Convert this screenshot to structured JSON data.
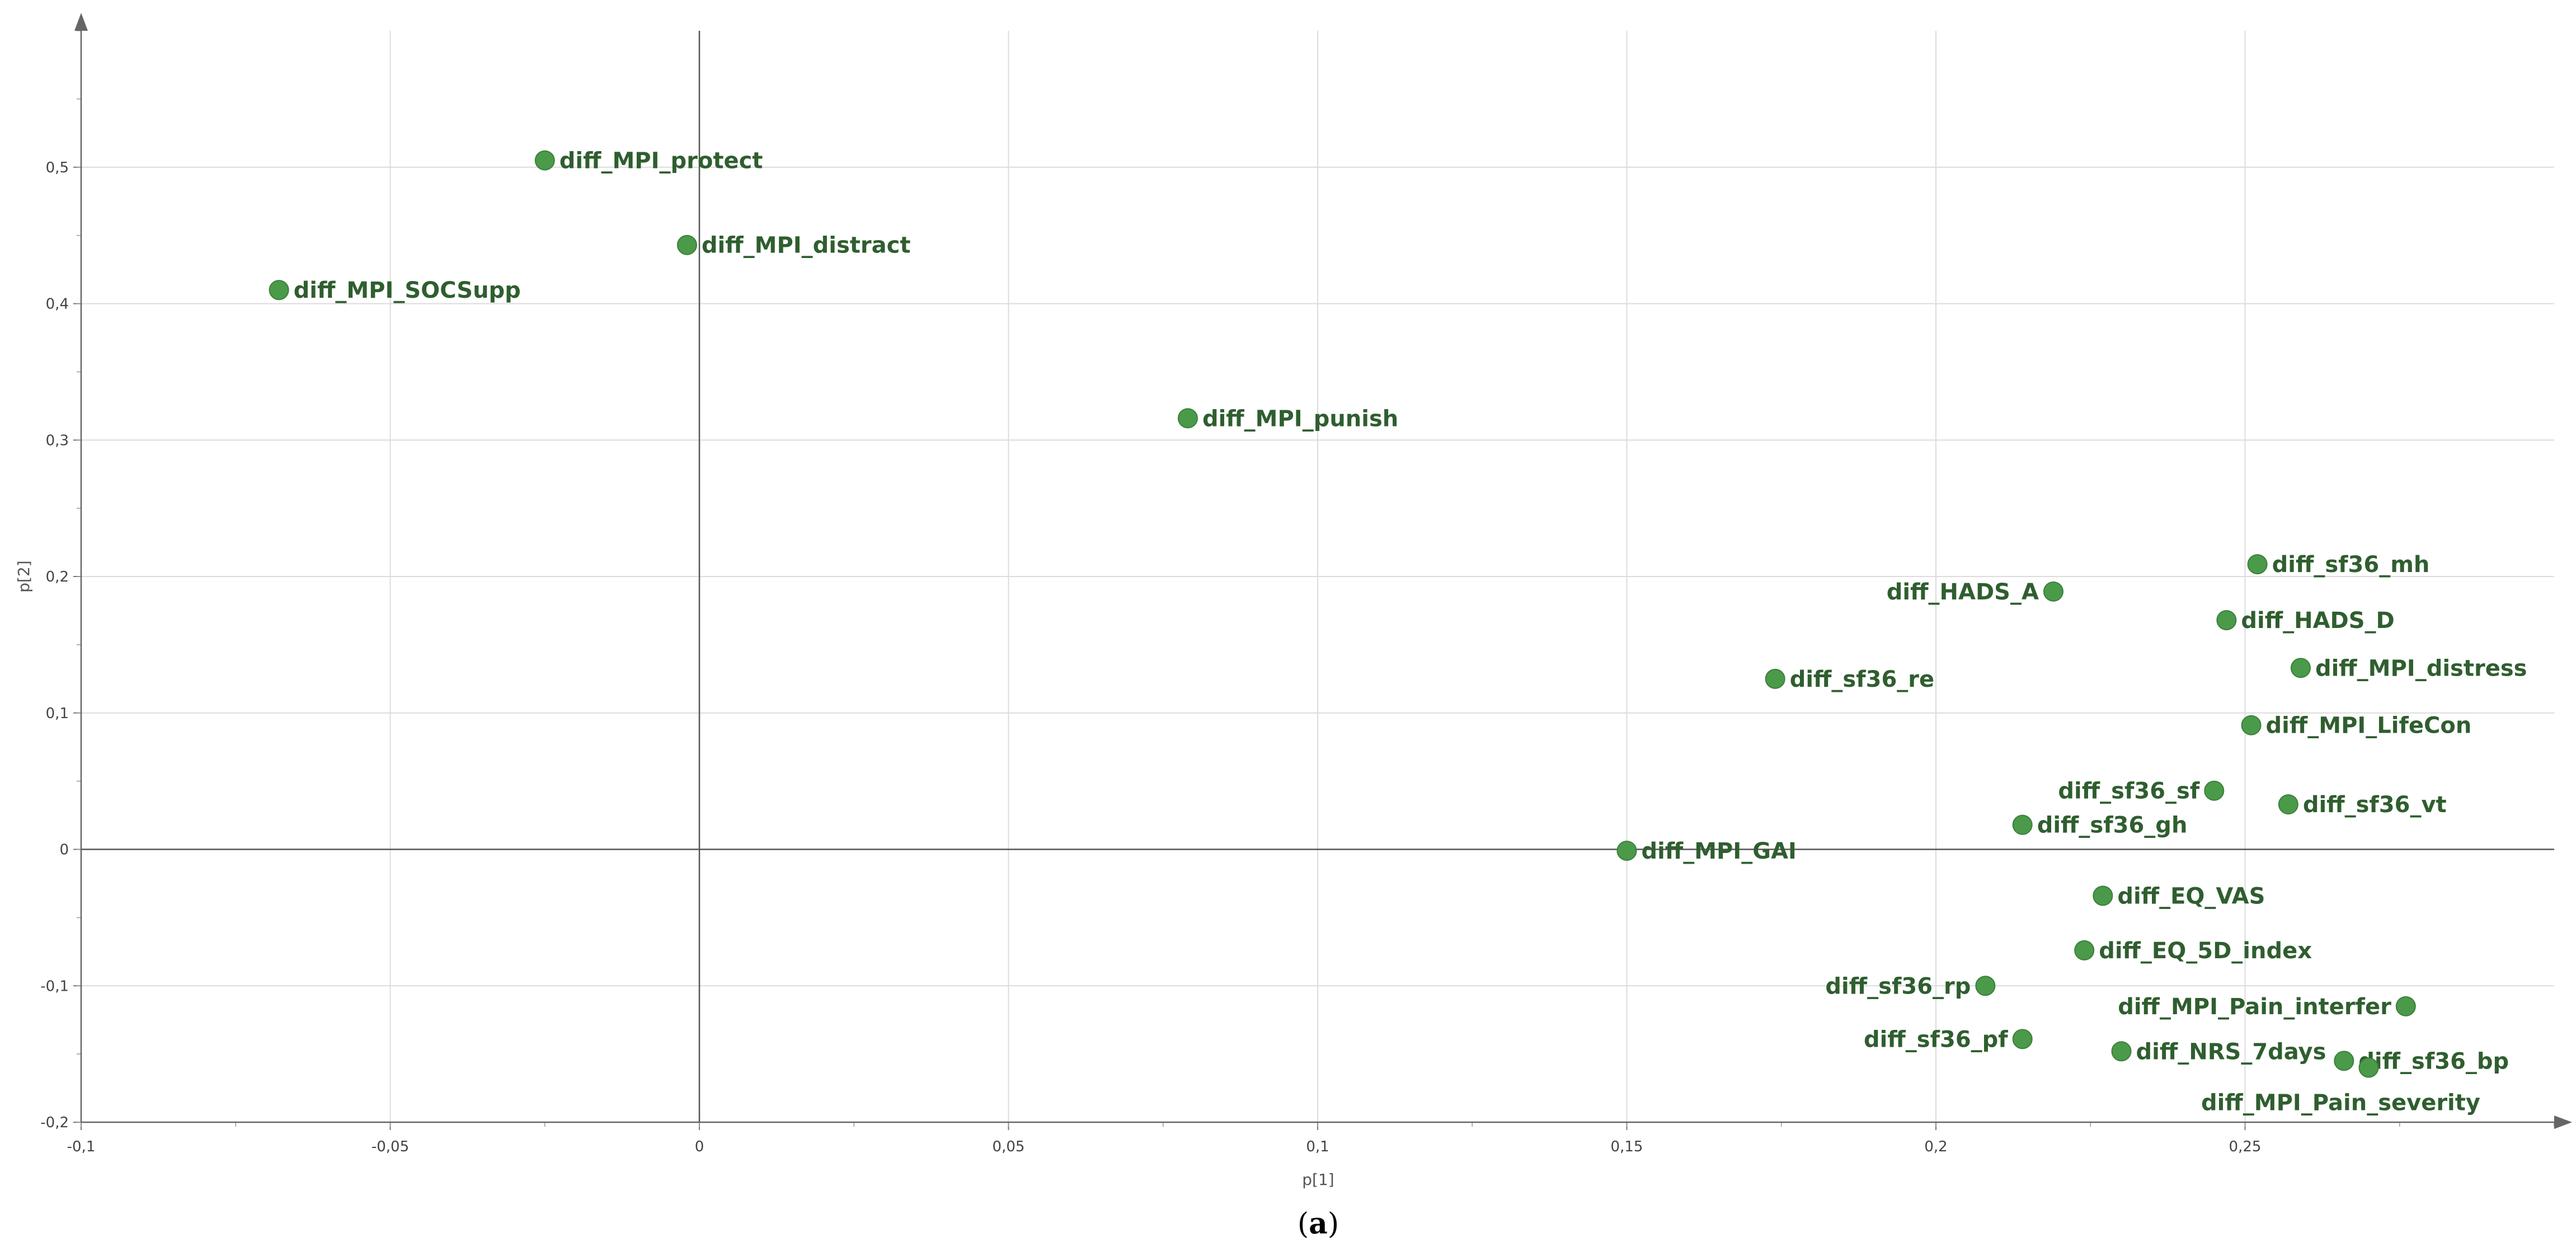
{
  "chart_data": {
    "type": "scatter",
    "xlabel": "p[1]",
    "ylabel": "p[2]",
    "xlim": [
      -0.1,
      0.3
    ],
    "ylim": [
      -0.2,
      0.6
    ],
    "x_ticks": [
      -0.1,
      -0.05,
      0,
      0.05,
      0.1,
      0.15,
      0.2,
      0.25
    ],
    "y_ticks": [
      -0.2,
      -0.1,
      0,
      0.1,
      0.2,
      0.3,
      0.4,
      0.5
    ],
    "x_tick_labels": [
      "-0,1",
      "-0,05",
      "0",
      "0,05",
      "0,1",
      "0,15",
      "0,2",
      "0,25"
    ],
    "y_tick_labels": [
      "-0,2",
      "-0,1",
      "0",
      "0,1",
      "0,2",
      "0,3",
      "0,4",
      "0,5"
    ],
    "grid": true,
    "point_color": "#4a9a4a",
    "label_color": "#2f5e2f",
    "points": [
      {
        "label": "diff_MPI_protect",
        "x": -0.025,
        "y": 0.505,
        "label_side": "right"
      },
      {
        "label": "diff_MPI_distract",
        "x": -0.002,
        "y": 0.443,
        "label_side": "right"
      },
      {
        "label": "diff_MPI_SOCSupp",
        "x": -0.068,
        "y": 0.41,
        "label_side": "right"
      },
      {
        "label": "diff_MPI_punish",
        "x": 0.079,
        "y": 0.316,
        "label_side": "right"
      },
      {
        "label": "diff_sf36_mh",
        "x": 0.252,
        "y": 0.209,
        "label_side": "right"
      },
      {
        "label": "diff_HADS_A",
        "x": 0.219,
        "y": 0.189,
        "label_side": "left"
      },
      {
        "label": "diff_HADS_D",
        "x": 0.247,
        "y": 0.168,
        "label_side": "right"
      },
      {
        "label": "diff_MPI_distress",
        "x": 0.259,
        "y": 0.133,
        "label_side": "right"
      },
      {
        "label": "diff_sf36_re",
        "x": 0.174,
        "y": 0.125,
        "label_side": "right"
      },
      {
        "label": "diff_MPI_LifeCon",
        "x": 0.251,
        "y": 0.091,
        "label_side": "right"
      },
      {
        "label": "diff_sf36_sf",
        "x": 0.245,
        "y": 0.043,
        "label_side": "left"
      },
      {
        "label": "diff_sf36_vt",
        "x": 0.257,
        "y": 0.033,
        "label_side": "right"
      },
      {
        "label": "diff_sf36_gh",
        "x": 0.214,
        "y": 0.018,
        "label_side": "right"
      },
      {
        "label": "diff_MPI_GAI",
        "x": 0.15,
        "y": -0.001,
        "label_side": "right"
      },
      {
        "label": "diff_EQ_VAS",
        "x": 0.227,
        "y": -0.034,
        "label_side": "right"
      },
      {
        "label": "diff_EQ_5D_index",
        "x": 0.224,
        "y": -0.074,
        "label_side": "right"
      },
      {
        "label": "diff_sf36_rp",
        "x": 0.208,
        "y": -0.1,
        "label_side": "left"
      },
      {
        "label": "diff_MPI_Pain_interfer",
        "x": 0.276,
        "y": -0.115,
        "label_side": "left"
      },
      {
        "label": "diff_sf36_pf",
        "x": 0.214,
        "y": -0.139,
        "label_side": "left"
      },
      {
        "label": "diff_NRS_7days",
        "x": 0.23,
        "y": -0.148,
        "label_side": "right"
      },
      {
        "label": "diff_sf36_bp",
        "x": 0.266,
        "y": -0.155,
        "label_side": "right"
      },
      {
        "label": "diff_MPI_Pain_severity",
        "x": 0.27,
        "y": -0.16,
        "label_side": "below"
      }
    ]
  },
  "caption": {
    "open": "(",
    "letter": "a",
    "close": ")"
  }
}
